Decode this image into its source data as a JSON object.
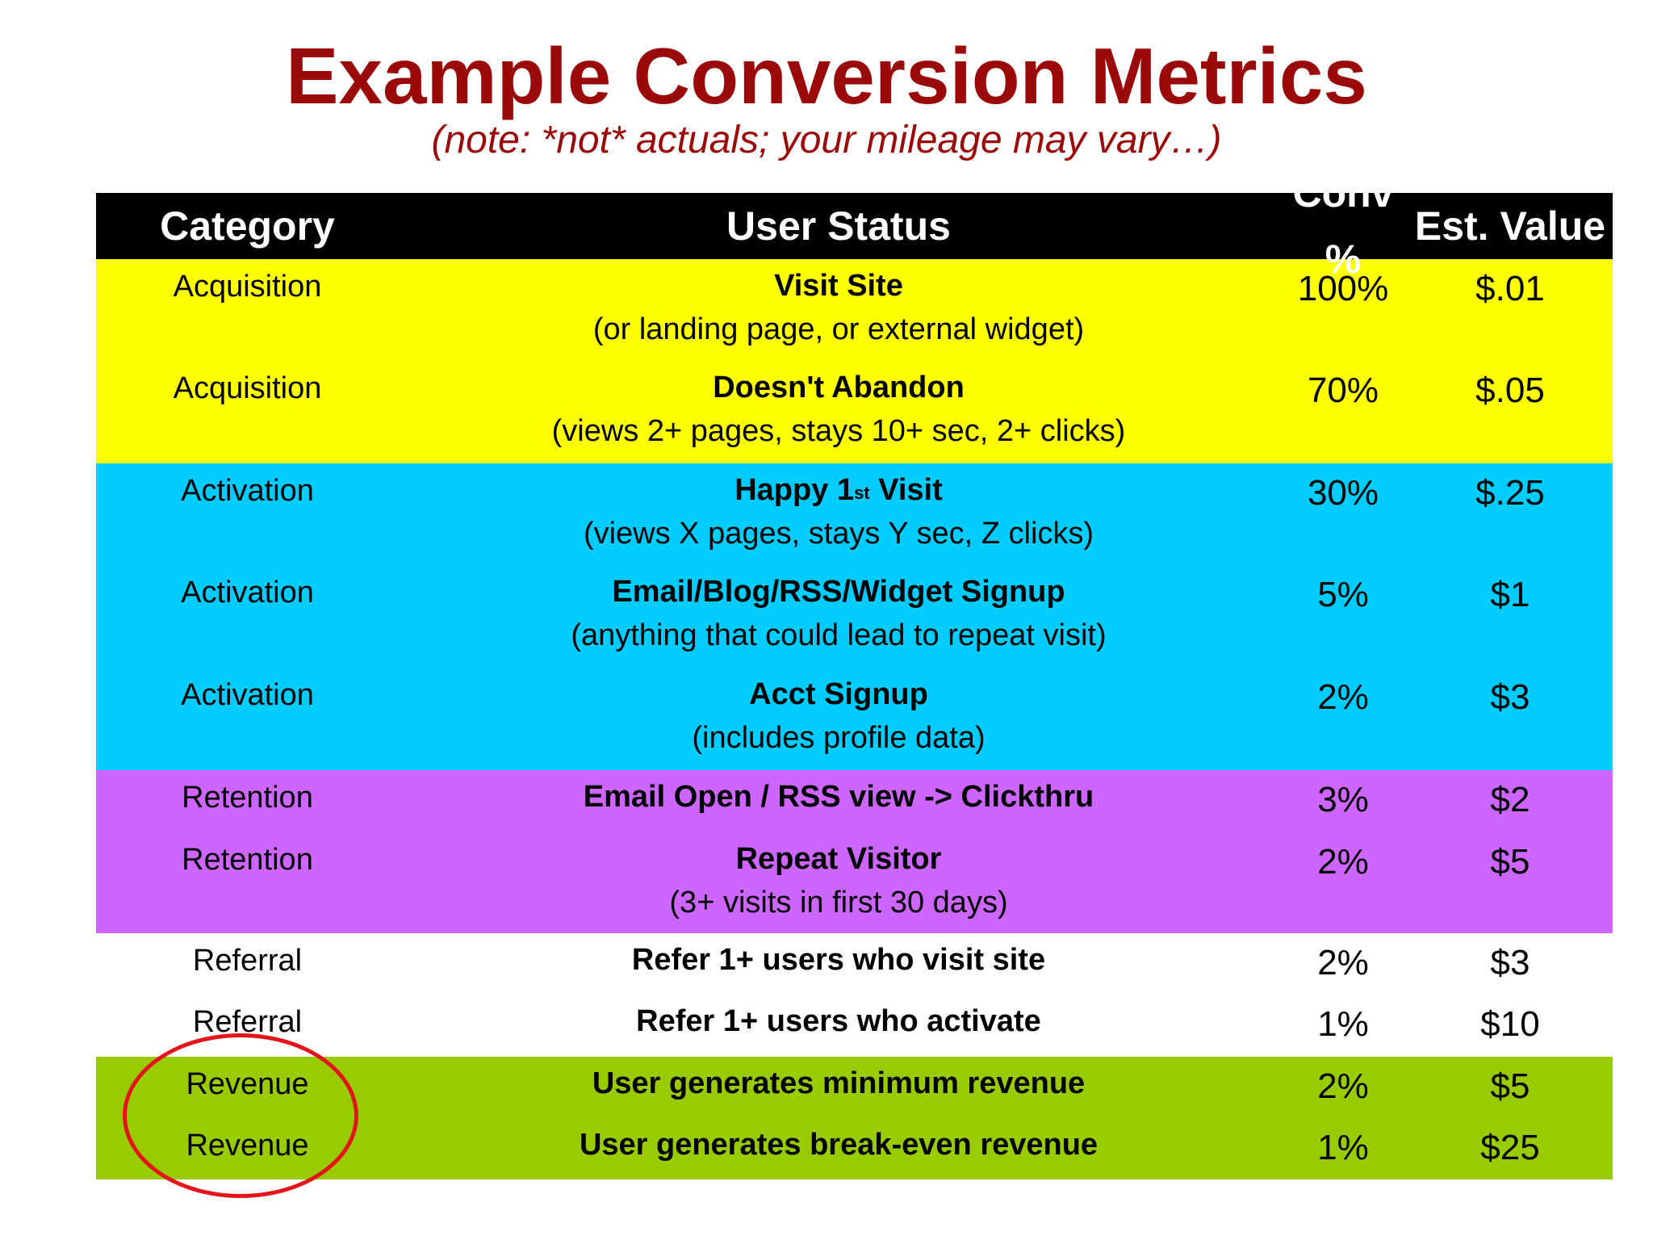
{
  "title": "Example Conversion Metrics",
  "subtitle": "(note: *not* actuals; your mileage may vary…)",
  "colors": {
    "title": "#9b0a0a",
    "header_bg": "#000000",
    "acquisition_bg": "#ffff00",
    "activation_bg": "#00ccff",
    "retention_bg": "#cc66ff",
    "referral_bg": "#ffffff",
    "revenue_bg": "#99cc00",
    "circle": "#e3151a"
  },
  "table": {
    "headers": [
      "Category",
      "User Status",
      "Conv %",
      "Est. Value"
    ],
    "rows": [
      {
        "category": "Acquisition",
        "status": "Visit Site",
        "status_sup": "",
        "status_after": "",
        "detail": "(or landing page, or external widget)",
        "conv": "100%",
        "value": "$.01"
      },
      {
        "category": "Acquisition",
        "status": "Doesn't Abandon",
        "status_sup": "",
        "status_after": "",
        "detail": "(views 2+ pages, stays 10+ sec, 2+ clicks)",
        "conv": "70%",
        "value": "$.05"
      },
      {
        "category": "Activation",
        "status": "Happy 1",
        "status_sup": "st",
        "status_after": " Visit",
        "detail": "(views X pages, stays Y sec, Z clicks)",
        "conv": "30%",
        "value": "$.25"
      },
      {
        "category": "Activation",
        "status": "Email/Blog/RSS/Widget Signup",
        "status_sup": "",
        "status_after": "",
        "detail": "(anything that could lead to repeat visit)",
        "conv": "5%",
        "value": "$1"
      },
      {
        "category": "Activation",
        "status": "Acct Signup",
        "status_sup": "",
        "status_after": "",
        "detail": "(includes profile data)",
        "conv": "2%",
        "value": "$3"
      },
      {
        "category": "Retention",
        "status": "Email Open / RSS view -> Clickthru",
        "status_sup": "",
        "status_after": "",
        "detail": "",
        "conv": "3%",
        "value": "$2"
      },
      {
        "category": "Retention",
        "status": "Repeat Visitor",
        "status_sup": "",
        "status_after": "",
        "detail": "(3+ visits in first 30 days)",
        "conv": "2%",
        "value": "$5"
      },
      {
        "category": "Referral",
        "status": "Refer 1+ users who visit site",
        "status_sup": "",
        "status_after": "",
        "detail": "",
        "conv": "2%",
        "value": "$3"
      },
      {
        "category": "Referral",
        "status": "Refer 1+ users who activate",
        "status_sup": "",
        "status_after": "",
        "detail": "",
        "conv": "1%",
        "value": "$10"
      },
      {
        "category": "Revenue",
        "status": "User generates minimum revenue",
        "status_sup": "",
        "status_after": "",
        "detail": "",
        "conv": "2%",
        "value": "$5"
      },
      {
        "category": "Revenue",
        "status": "User generates break-even revenue",
        "status_sup": "",
        "status_after": "",
        "detail": "",
        "conv": "1%",
        "value": "$25"
      }
    ]
  }
}
